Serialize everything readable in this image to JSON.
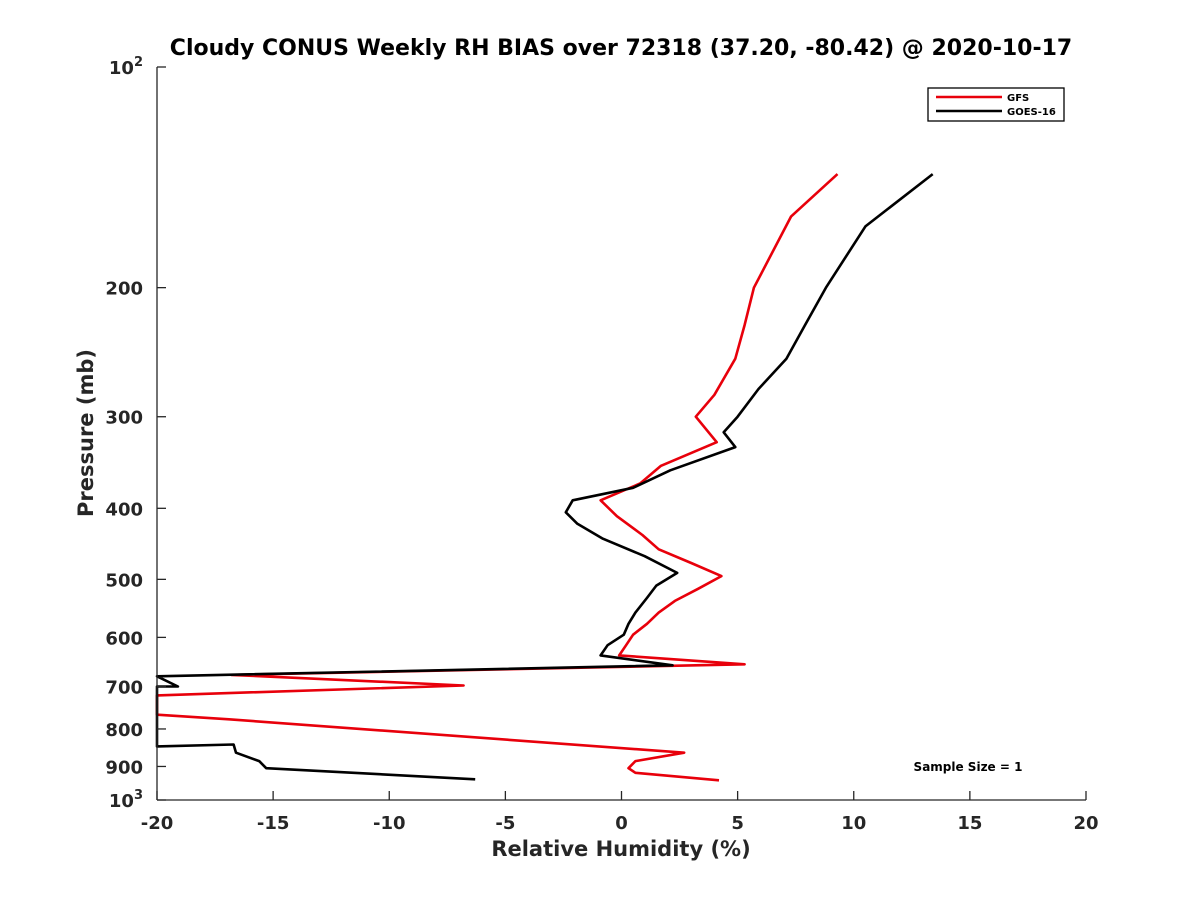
{
  "chart_data": {
    "type": "line",
    "title": "Cloudy CONUS Weekly RH BIAS over 72318 (37.20, -80.42) @ 2020-10-17",
    "xlabel": "Relative Humidity (%)",
    "ylabel": "Pressure (mb)",
    "xlim": [
      -20,
      20
    ],
    "ylim": [
      100,
      1000
    ],
    "yscale": "log",
    "y_reversed": true,
    "xticks": [
      -20,
      -15,
      -10,
      -5,
      0,
      5,
      10,
      15,
      20
    ],
    "xtick_labels": [
      "-20",
      "-15",
      "-10",
      "-5",
      "0",
      "5",
      "10",
      "15",
      "20"
    ],
    "yticks": [
      200,
      300,
      400,
      500,
      600,
      700,
      800,
      900
    ],
    "ytick_labels": [
      "200",
      "300",
      "400",
      "500",
      "600",
      "700",
      "800",
      "900"
    ],
    "ytick_top": {
      "base": "10",
      "exp": "2",
      "value": 100
    },
    "ytick_bottom": {
      "base": "10",
      "exp": "3",
      "value": 1000
    },
    "legend_position": "top-right",
    "annotation": "Sample Size = 1",
    "series": [
      {
        "name": "GFS",
        "color": "#e8000b",
        "x": [
          9.3,
          7.3,
          5.7,
          5.3,
          4.9,
          4.0,
          3.2,
          4.1,
          1.7,
          0.8,
          -0.9,
          -0.2,
          0.9,
          1.6,
          3.0,
          4.3,
          3.3,
          2.3,
          1.6,
          1.1,
          0.5,
          0.2,
          -0.1,
          5.3,
          -16.8,
          -6.8,
          -20,
          -20,
          -16.9,
          2.7,
          0.6,
          0.3,
          0.6,
          4.2
        ],
        "y": [
          140,
          160,
          200,
          225,
          250,
          280,
          300,
          325,
          350,
          370,
          390,
          410,
          435,
          455,
          475,
          495,
          515,
          535,
          555,
          575,
          595,
          615,
          635,
          653,
          675,
          698,
          720,
          765,
          776,
          862,
          885,
          905,
          918,
          940
        ]
      },
      {
        "name": "GOES-16",
        "color": "#000000",
        "x": [
          13.4,
          10.5,
          8.8,
          7.9,
          7.1,
          5.9,
          5.0,
          4.4,
          4.9,
          2.1,
          0.5,
          -2.1,
          -2.4,
          -1.9,
          -0.8,
          1.0,
          2.4,
          1.5,
          1.1,
          0.6,
          0.3,
          0.1,
          -0.6,
          -0.9,
          2.2,
          -20,
          -19.1,
          -20,
          -20,
          -16.7,
          -16.6,
          -15.6,
          -15.3,
          -6.3
        ],
        "y": [
          140,
          165,
          200,
          225,
          250,
          275,
          300,
          315,
          330,
          355,
          375,
          390,
          405,
          420,
          440,
          465,
          490,
          510,
          530,
          555,
          575,
          595,
          615,
          635,
          655,
          678,
          700,
          700,
          845,
          840,
          862,
          885,
          905,
          937
        ]
      }
    ]
  }
}
